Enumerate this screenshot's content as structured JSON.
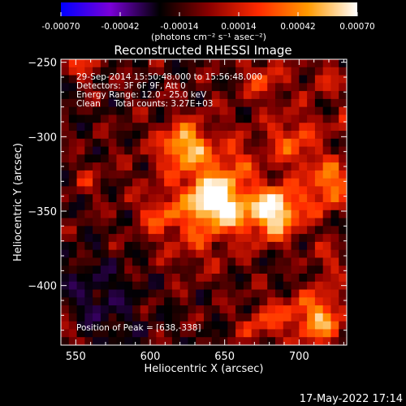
{
  "colorbar": {
    "tick_labels": [
      "-0.00070",
      "-0.00042",
      "-0.00014",
      "0.00014",
      "0.00042",
      "0.00070"
    ],
    "ticks": [
      -0.0007,
      -0.00042,
      -0.00014,
      0.00014,
      0.00042,
      0.0007
    ],
    "range": [
      -0.0007,
      0.0007
    ],
    "units_label": "(photons cm⁻² s⁻¹ asec⁻²)",
    "colors": [
      "#0000ff",
      "#7a00d8",
      "#000000",
      "#8b0000",
      "#ff2a00",
      "#ff9a00",
      "#ffffff"
    ]
  },
  "chart_data": {
    "type": "heatmap",
    "title": "Reconstructed RHESSI Image",
    "xlabel": "Heliocentric X (arcsec)",
    "ylabel": "Heliocentric Y (arcsec)",
    "xlim": [
      540,
      732
    ],
    "ylim": [
      -440,
      -248
    ],
    "x_ticks": [
      550,
      600,
      650,
      700
    ],
    "y_ticks": [
      -250,
      -300,
      -350,
      -400
    ],
    "x_tick_labels": [
      "550",
      "600",
      "650",
      "700"
    ],
    "y_tick_labels": [
      "−250",
      "−300",
      "−350",
      "−400"
    ],
    "peak": [
      638,
      -338
    ],
    "annotations": [
      "29-Sep-2014 15:50:48.000 to 15:56:48.000",
      "Detectors: 3F 6F 9F, Att 0",
      "Energy Range: 12.0 - 25.0 keV",
      "Clean     Total counts: 3.27E+03"
    ],
    "peak_label": "Position of Peak = [638,-338]"
  },
  "footer": {
    "timestamp": "17-May-2022 17:14"
  }
}
